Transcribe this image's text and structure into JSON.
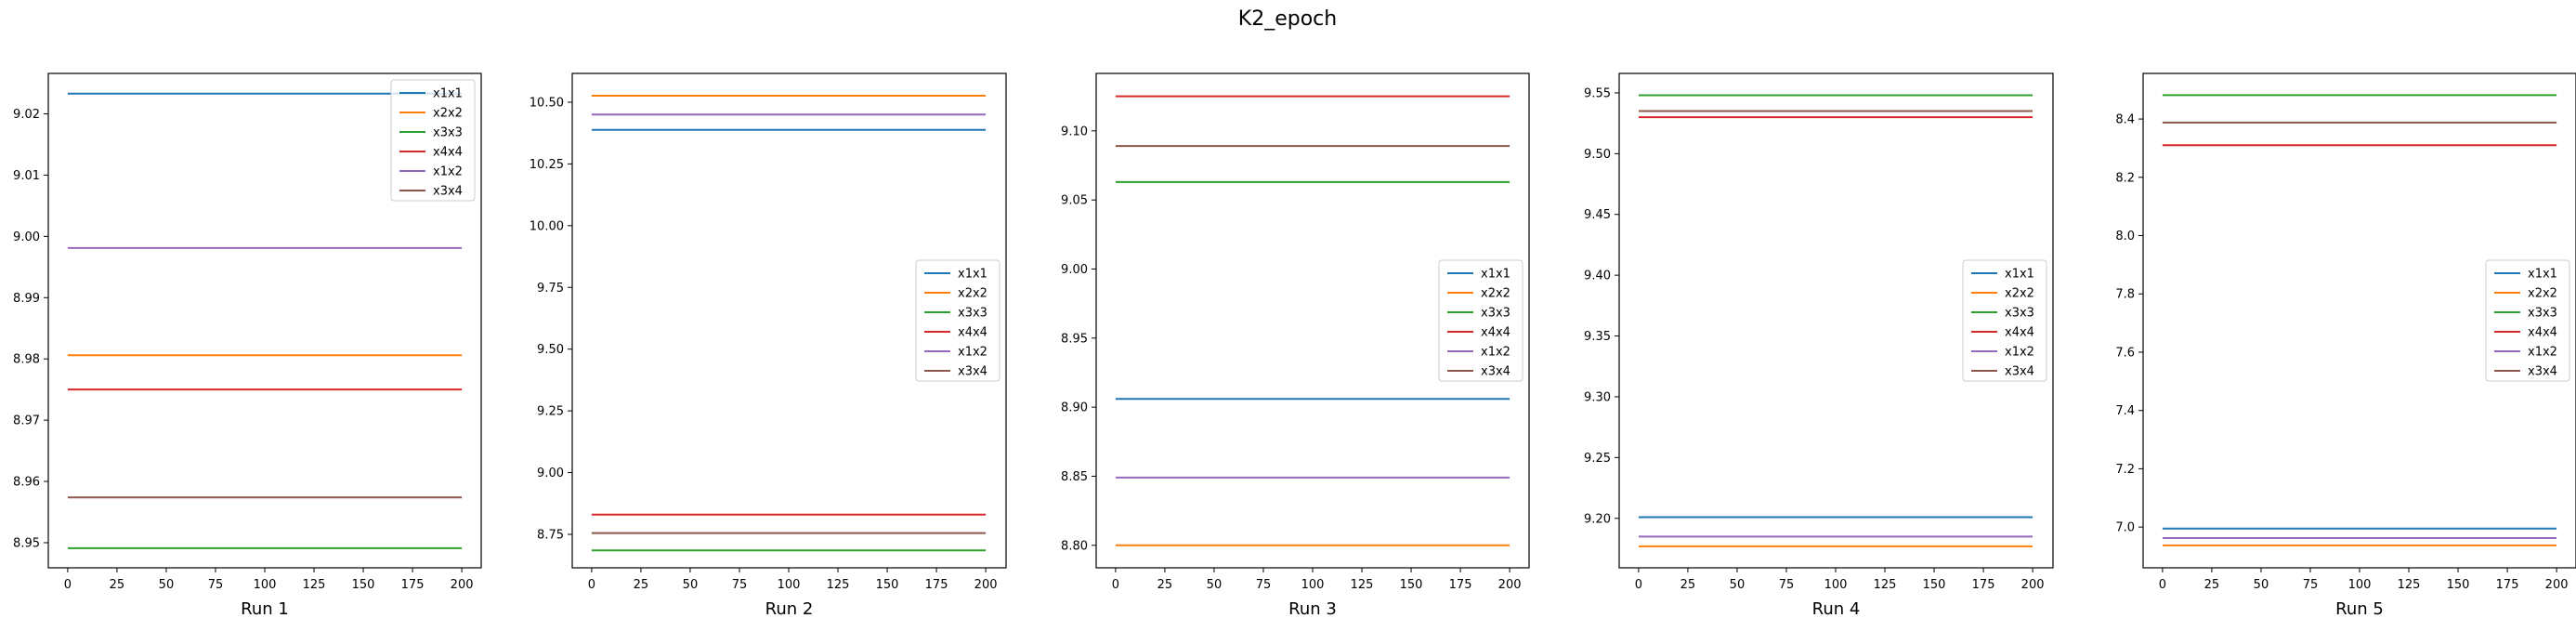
{
  "figure_title": "K2_epoch",
  "chart_data": [
    {
      "type": "line",
      "title": "",
      "xlabel": "Run 1",
      "ylabel": "",
      "x_range": [
        0,
        200
      ],
      "xticks": [
        0,
        25,
        50,
        75,
        100,
        125,
        150,
        175,
        200
      ],
      "ylim": [
        8.9459,
        9.0266
      ],
      "yticks": [
        8.95,
        8.96,
        8.97,
        8.98,
        8.99,
        9.0,
        9.01,
        9.02
      ],
      "ytick_labels": [
        "8.95",
        "8.96",
        "8.97",
        "8.98",
        "8.99",
        "9.00",
        "9.01",
        "9.02"
      ],
      "legend_position": "upper right",
      "grid": false,
      "series": [
        {
          "name": "x1x1",
          "color": "#1f77b4",
          "value": 9.0233
        },
        {
          "name": "x2x2",
          "color": "#ff7f0e",
          "value": 8.9806
        },
        {
          "name": "x3x3",
          "color": "#2ca02c",
          "value": 8.9491
        },
        {
          "name": "x4x4",
          "color": "#d62728",
          "value": 8.975
        },
        {
          "name": "x1x2",
          "color": "#9467bd",
          "value": 8.9981
        },
        {
          "name": "x3x4",
          "color": "#8c564b",
          "value": 8.9574
        }
      ]
    },
    {
      "type": "line",
      "title": "",
      "xlabel": "Run 2",
      "ylabel": "",
      "x_range": [
        0,
        200
      ],
      "xticks": [
        0,
        25,
        50,
        75,
        100,
        125,
        150,
        175,
        200
      ],
      "ylim": [
        8.6145,
        10.6165
      ],
      "yticks": [
        8.75,
        9.0,
        9.25,
        9.5,
        9.75,
        10.0,
        10.25,
        10.5
      ],
      "ytick_labels": [
        "8.75",
        "9.00",
        "9.25",
        "9.50",
        "9.75",
        "10.00",
        "10.25",
        "10.50"
      ],
      "legend_position": "center right",
      "grid": false,
      "series": [
        {
          "name": "x1x1",
          "color": "#1f77b4",
          "value": 10.388
        },
        {
          "name": "x2x2",
          "color": "#ff7f0e",
          "value": 10.526
        },
        {
          "name": "x3x3",
          "color": "#2ca02c",
          "value": 8.685
        },
        {
          "name": "x4x4",
          "color": "#d62728",
          "value": 8.83
        },
        {
          "name": "x1x2",
          "color": "#9467bd",
          "value": 10.45
        },
        {
          "name": "x3x4",
          "color": "#8c564b",
          "value": 8.755
        }
      ]
    },
    {
      "type": "line",
      "title": "",
      "xlabel": "Run 3",
      "ylabel": "",
      "x_range": [
        0,
        200
      ],
      "xticks": [
        0,
        25,
        50,
        75,
        100,
        125,
        150,
        175,
        200
      ],
      "ylim": [
        8.7837,
        9.1416
      ],
      "yticks": [
        8.8,
        8.85,
        8.9,
        8.95,
        9.0,
        9.05,
        9.1
      ],
      "ytick_labels": [
        "8.80",
        "8.85",
        "8.90",
        "8.95",
        "9.00",
        "9.05",
        "9.10"
      ],
      "legend_position": "center right",
      "grid": false,
      "series": [
        {
          "name": "x1x1",
          "color": "#1f77b4",
          "value": 8.906
        },
        {
          "name": "x2x2",
          "color": "#ff7f0e",
          "value": 8.8
        },
        {
          "name": "x3x3",
          "color": "#2ca02c",
          "value": 9.063
        },
        {
          "name": "x4x4",
          "color": "#d62728",
          "value": 9.125
        },
        {
          "name": "x1x2",
          "color": "#9467bd",
          "value": 8.849
        },
        {
          "name": "x3x4",
          "color": "#8c564b",
          "value": 9.089
        }
      ]
    },
    {
      "type": "line",
      "title": "",
      "xlabel": "Run 4",
      "ylabel": "",
      "x_range": [
        0,
        200
      ],
      "xticks": [
        0,
        25,
        50,
        75,
        100,
        125,
        150,
        175,
        200
      ],
      "ylim": [
        9.1593,
        9.566
      ],
      "yticks": [
        9.2,
        9.25,
        9.3,
        9.35,
        9.4,
        9.45,
        9.5,
        9.55
      ],
      "ytick_labels": [
        "9.20",
        "9.25",
        "9.30",
        "9.35",
        "9.40",
        "9.45",
        "9.50",
        "9.55"
      ],
      "legend_position": "center right",
      "grid": false,
      "series": [
        {
          "name": "x1x1",
          "color": "#1f77b4",
          "value": 9.201
        },
        {
          "name": "x2x2",
          "color": "#ff7f0e",
          "value": 9.177
        },
        {
          "name": "x3x3",
          "color": "#2ca02c",
          "value": 9.548
        },
        {
          "name": "x4x4",
          "color": "#d62728",
          "value": 9.53
        },
        {
          "name": "x1x2",
          "color": "#9467bd",
          "value": 9.185
        },
        {
          "name": "x3x4",
          "color": "#8c564b",
          "value": 9.535
        }
      ]
    },
    {
      "type": "line",
      "title": "",
      "xlabel": "Run 5",
      "ylabel": "",
      "x_range": [
        0,
        200
      ],
      "xticks": [
        0,
        25,
        50,
        75,
        100,
        125,
        150,
        175,
        200
      ],
      "ylim": [
        6.8601,
        8.5565
      ],
      "yticks": [
        7.0,
        7.2,
        7.4,
        7.6,
        7.8,
        8.0,
        8.2,
        8.4
      ],
      "ytick_labels": [
        "7.0",
        "7.2",
        "7.4",
        "7.6",
        "7.8",
        "8.0",
        "8.2",
        "8.4"
      ],
      "legend_position": "center right",
      "grid": false,
      "series": [
        {
          "name": "x1x1",
          "color": "#1f77b4",
          "value": 6.995
        },
        {
          "name": "x2x2",
          "color": "#ff7f0e",
          "value": 6.937
        },
        {
          "name": "x3x3",
          "color": "#2ca02c",
          "value": 8.482
        },
        {
          "name": "x4x4",
          "color": "#d62728",
          "value": 8.31
        },
        {
          "name": "x1x2",
          "color": "#9467bd",
          "value": 6.962
        },
        {
          "name": "x3x4",
          "color": "#8c564b",
          "value": 8.388
        }
      ]
    }
  ]
}
